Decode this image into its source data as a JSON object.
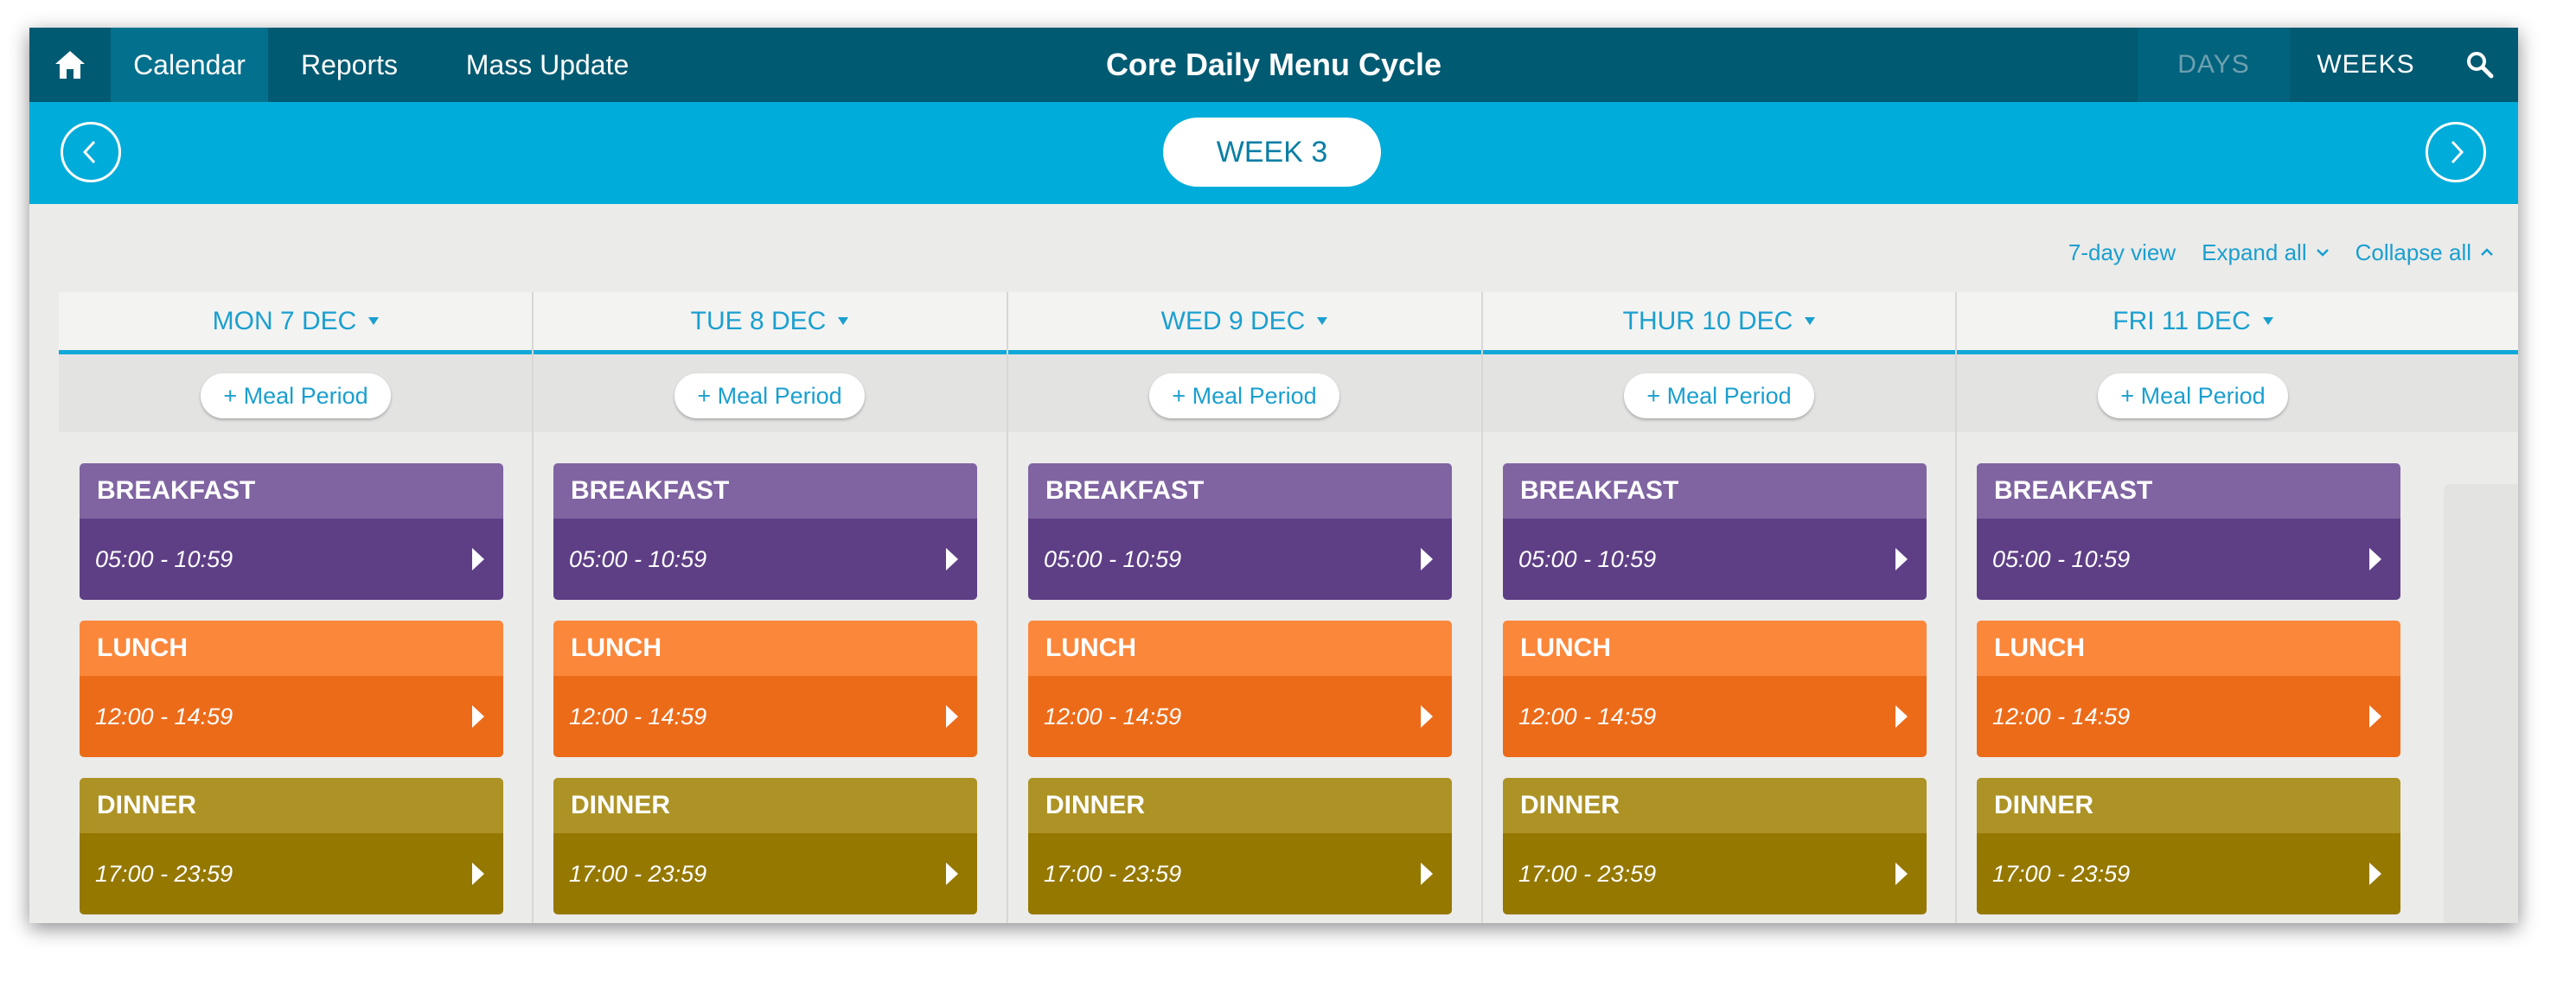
{
  "nav": {
    "home_icon": "home-icon",
    "items": [
      {
        "label": "Calendar",
        "active": true
      },
      {
        "label": "Reports",
        "active": false
      },
      {
        "label": "Mass Update",
        "active": false
      }
    ],
    "title": "Core Daily Menu Cycle",
    "view_days": "DAYS",
    "view_weeks": "WEEKS",
    "search_icon": "search-icon"
  },
  "week": {
    "label": "WEEK 3",
    "prev_icon": "chevron-left-icon",
    "next_icon": "chevron-right-icon"
  },
  "toolbar": {
    "seven_day": "7-day view",
    "expand_all": "Expand all",
    "collapse_all": "Collapse all"
  },
  "add_meal_period": "+ Meal Period",
  "colors": {
    "topbar": "#005a72",
    "weekbar": "#00acd9",
    "breakfast_head": "#8064a2",
    "breakfast_body": "#5e3f86",
    "lunch_head": "#fb873b",
    "lunch_body": "#ec6b19",
    "dinner_head": "#ad9326",
    "dinner_body": "#957800"
  },
  "days": [
    {
      "label": "MON 7 DEC",
      "meals": [
        {
          "name": "BREAKFAST",
          "time": "05:00 - 10:59"
        },
        {
          "name": "LUNCH",
          "time": "12:00 - 14:59"
        },
        {
          "name": "DINNER",
          "time": "17:00 - 23:59"
        }
      ]
    },
    {
      "label": "TUE 8 DEC",
      "meals": [
        {
          "name": "BREAKFAST",
          "time": "05:00 - 10:59"
        },
        {
          "name": "LUNCH",
          "time": "12:00 - 14:59"
        },
        {
          "name": "DINNER",
          "time": "17:00 - 23:59"
        }
      ]
    },
    {
      "label": "WED 9 DEC",
      "meals": [
        {
          "name": "BREAKFAST",
          "time": "05:00 - 10:59"
        },
        {
          "name": "LUNCH",
          "time": "12:00 - 14:59"
        },
        {
          "name": "DINNER",
          "time": "17:00 - 23:59"
        }
      ]
    },
    {
      "label": "THUR 10 DEC",
      "meals": [
        {
          "name": "BREAKFAST",
          "time": "05:00 - 10:59"
        },
        {
          "name": "LUNCH",
          "time": "12:00 - 14:59"
        },
        {
          "name": "DINNER",
          "time": "17:00 - 23:59"
        }
      ]
    },
    {
      "label": "FRI 11 DEC",
      "meals": [
        {
          "name": "BREAKFAST",
          "time": "05:00 - 10:59"
        },
        {
          "name": "LUNCH",
          "time": "12:00 - 14:59"
        },
        {
          "name": "DINNER",
          "time": "17:00 - 23:59"
        }
      ]
    }
  ]
}
